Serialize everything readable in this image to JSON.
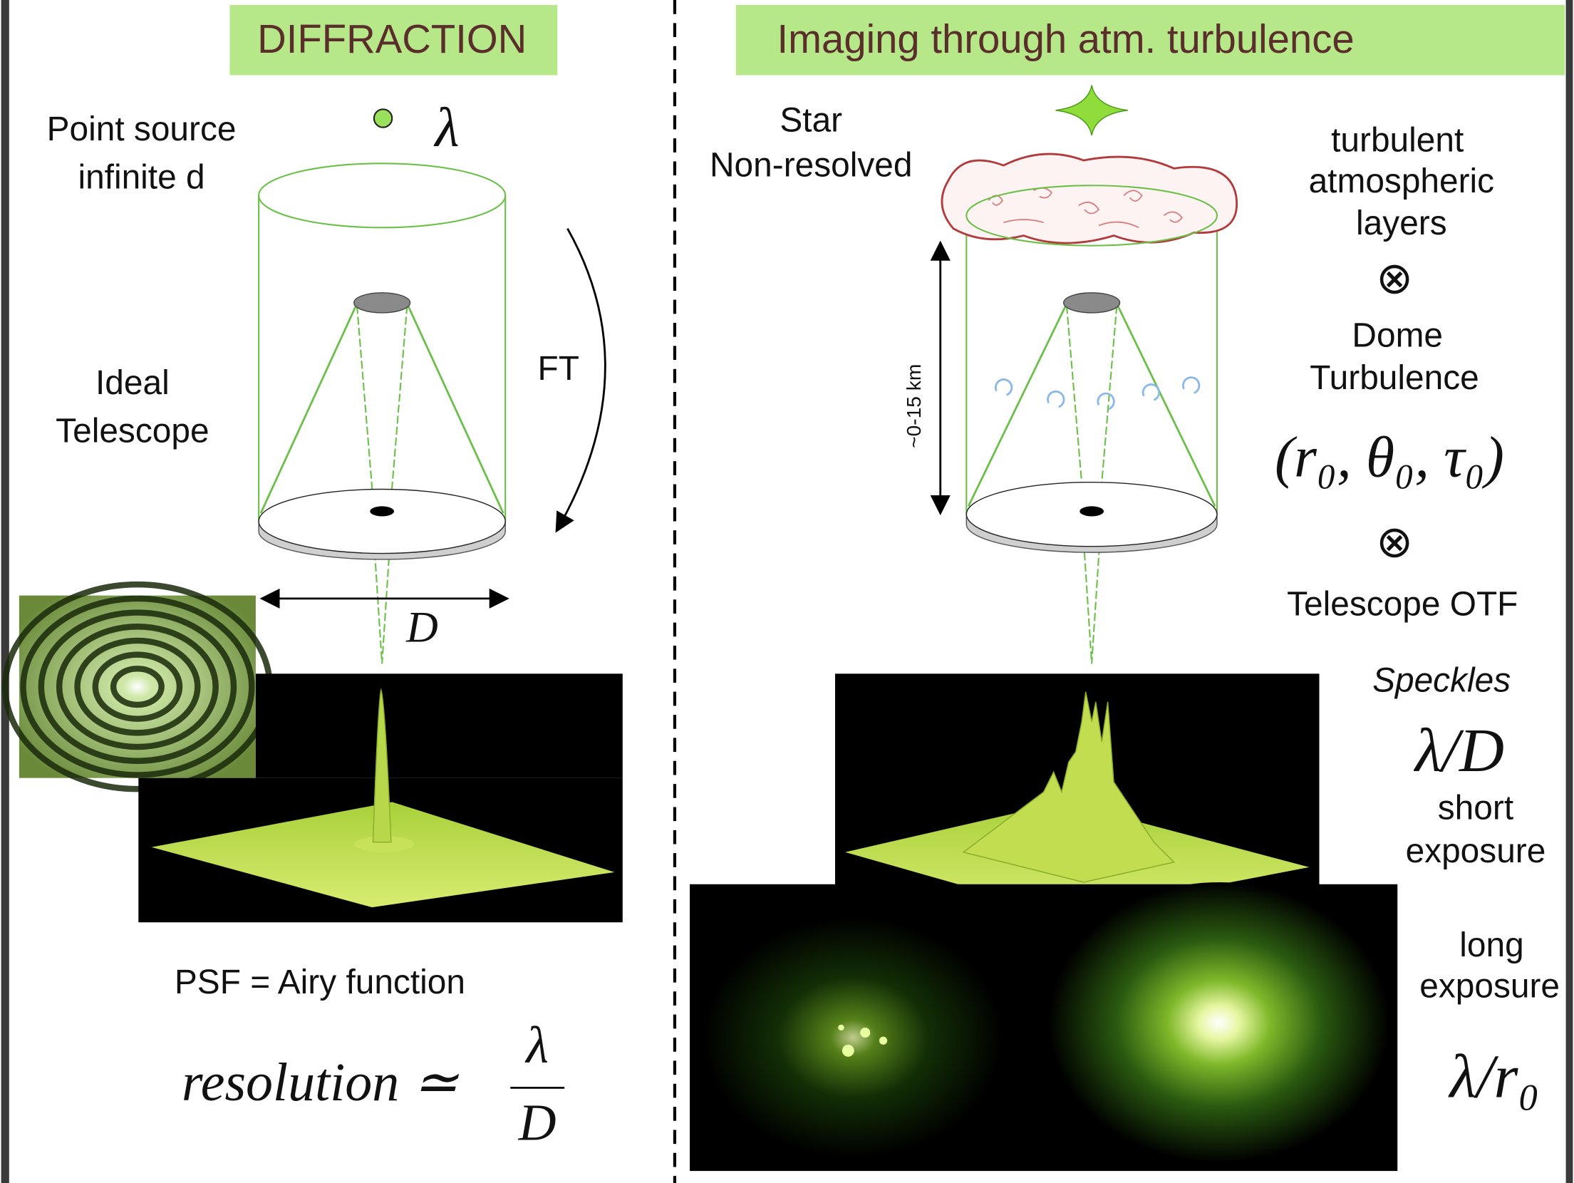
{
  "left": {
    "title": "DIFFRACTION",
    "source_label": [
      "Point source",
      "infinite d"
    ],
    "wavelength": "λ",
    "telescope_label": [
      "Ideal",
      "Telescope"
    ],
    "transform_label": "FT",
    "diameter_label": "D",
    "psf_label": "PSF = Airy function",
    "resolution": {
      "lhs": "resolution ≃",
      "numerator": "λ",
      "denominator": "D"
    }
  },
  "right": {
    "title": "Imaging through atm. turbulence",
    "star_label": [
      "Star",
      "Non-resolved"
    ],
    "height_label": "~0-15 km",
    "factors": [
      "turbulent",
      "atmospheric",
      "layers",
      "⊗",
      "Dome",
      "Turbulence",
      "(r₀, θ₀, τ₀)",
      "⊗",
      "Telescope OTF"
    ],
    "speckles_label": "Speckles",
    "short_scale": "λ/D",
    "short_label": [
      "short",
      "exposure"
    ],
    "long_label": [
      "long",
      "exposure"
    ],
    "long_scale": "λ/r₀"
  }
}
